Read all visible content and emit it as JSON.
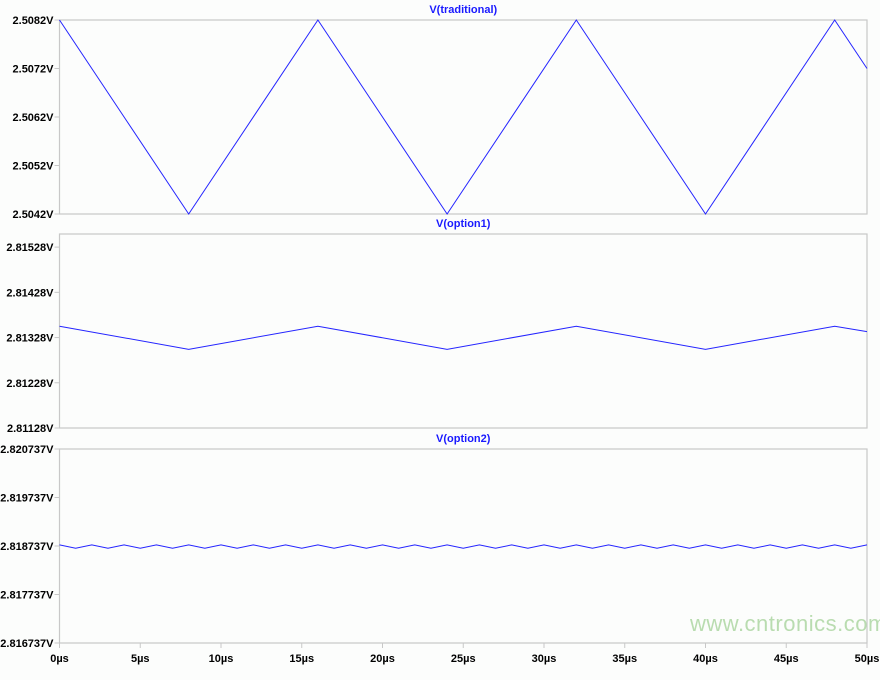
{
  "chart_data": [
    {
      "type": "line",
      "title": "V(traditional)",
      "ylim": [
        2.5042,
        2.5082
      ],
      "yticks": [
        "2.5082V",
        "2.5072V",
        "2.5062V",
        "2.5052V",
        "2.5042V"
      ],
      "ytick_values": [
        2.5082,
        2.5072,
        2.5062,
        2.5052,
        2.5042
      ],
      "xlim": [
        0,
        50
      ],
      "series": [
        {
          "x": [
            0,
            8,
            16,
            24,
            32,
            40,
            48,
            50
          ],
          "y": [
            2.5082,
            2.5042,
            2.5082,
            2.5042,
            2.5082,
            2.5042,
            2.5082,
            2.5072
          ]
        }
      ]
    },
    {
      "type": "line",
      "title": "V(option1)",
      "ylim": [
        2.81128,
        2.81557
      ],
      "yticks": [
        "2.81528V",
        "2.81428V",
        "2.81328V",
        "2.81228V",
        "2.81128V"
      ],
      "ytick_values": [
        2.81528,
        2.81428,
        2.81328,
        2.81228,
        2.81128
      ],
      "xlim": [
        0,
        50
      ],
      "series": [
        {
          "x": [
            0,
            8,
            16,
            24,
            32,
            40,
            48,
            50
          ],
          "y": [
            2.81353,
            2.81302,
            2.81353,
            2.81302,
            2.81353,
            2.81302,
            2.81353,
            2.81341
          ]
        }
      ]
    },
    {
      "type": "line",
      "title": "V(option2)",
      "ylim": [
        2.816737,
        2.820737
      ],
      "yticks": [
        "2.820737V",
        "2.819737V",
        "2.818737V",
        "2.817737V",
        "2.816737V"
      ],
      "ytick_values": [
        2.820737,
        2.819737,
        2.818737,
        2.817737,
        2.816737
      ],
      "xlim": [
        0,
        50
      ],
      "series": [
        {
          "period_us": 2,
          "high": 2.81876,
          "low": 2.81869
        }
      ],
      "xlabel_ticks": [
        "0µs",
        "5µs",
        "10µs",
        "15µs",
        "20µs",
        "25µs",
        "30µs",
        "35µs",
        "40µs",
        "45µs",
        "50µs"
      ],
      "xtick_values": [
        0,
        5,
        10,
        15,
        20,
        25,
        30,
        35,
        40,
        45,
        50
      ]
    }
  ],
  "colors": {
    "trace": "#2424ff",
    "title": "#1a1aff",
    "frame": "#c8c8c8"
  },
  "watermark": "www.cntronics.com"
}
